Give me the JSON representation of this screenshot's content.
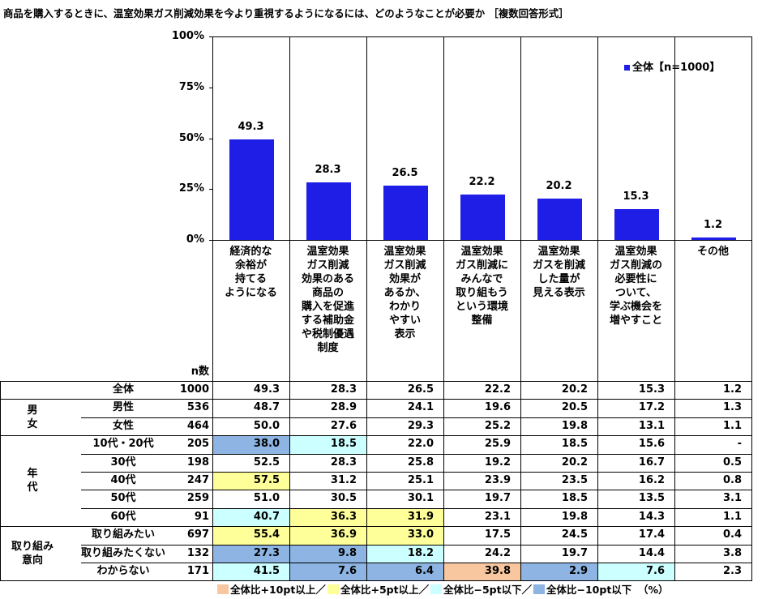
{
  "chart_data": {
    "type": "bar",
    "title": "商品を購入するときに、温室効果ガス削減効果を今より重視するようになるには、どのようなことが必要か ［複数回答形式］",
    "categories": [
      "経済的な\n余裕が\n持てる\nようになる",
      "温室効果\nガス削減\n効果のある\n商品の\n購入を促進\nする補助金\nや税制優遇\n制度",
      "温室効果\nガス削減\n効果が\nあるか、\nわかり\nやすい\n表示",
      "温室効果\nガス削減に\nみんなで\n取り組もう\nという環境\n整備",
      "温室効果\nガスを削減\nした量が\n見える表示",
      "温室効果\nガス削減の\n必要性に\nついて、\n学ぶ機会を\n増やすこと",
      "その他"
    ],
    "series": [
      {
        "name": "全体【n=1000】",
        "color": "#1e1ee6",
        "values": [
          49.3,
          28.3,
          26.5,
          22.2,
          20.2,
          15.3,
          1.2
        ]
      }
    ],
    "ylim": [
      0,
      100
    ],
    "yticks": [
      {
        "value": 0,
        "label": "0%"
      },
      {
        "value": 25,
        "label": "25%"
      },
      {
        "value": 50,
        "label": "50%"
      },
      {
        "value": 75,
        "label": "75%"
      },
      {
        "value": 100,
        "label": "100%"
      }
    ],
    "legend": "top-right"
  },
  "table": {
    "n_header": "n数",
    "groups": [
      {
        "label": "男\n女",
        "rows": [
          1,
          2
        ]
      },
      {
        "label": "年\n代",
        "rows": [
          3,
          7
        ]
      },
      {
        "label": "取り組み\n意向",
        "rows": [
          8,
          10
        ]
      }
    ],
    "rows": [
      {
        "label": "全体",
        "n": 1000,
        "cells": [
          "49.3",
          "28.3",
          "26.5",
          "22.2",
          "20.2",
          "15.3",
          "1.2"
        ],
        "colors": [
          null,
          null,
          null,
          null,
          null,
          null,
          null
        ]
      },
      {
        "label": "男性",
        "n": 536,
        "cells": [
          "48.7",
          "28.9",
          "24.1",
          "19.6",
          "20.5",
          "17.2",
          "1.3"
        ],
        "colors": [
          null,
          null,
          null,
          null,
          null,
          null,
          null
        ]
      },
      {
        "label": "女性",
        "n": 464,
        "cells": [
          "50.0",
          "27.6",
          "29.3",
          "25.2",
          "19.8",
          "13.1",
          "1.1"
        ],
        "colors": [
          null,
          null,
          null,
          null,
          null,
          null,
          null
        ]
      },
      {
        "label": "10代・20代",
        "n": 205,
        "cells": [
          "38.0",
          "18.5",
          "22.0",
          "25.9",
          "18.5",
          "15.6",
          "-"
        ],
        "colors": [
          "#8db4e2",
          "#ccffff",
          null,
          null,
          null,
          null,
          null
        ]
      },
      {
        "label": "30代",
        "n": 198,
        "cells": [
          "52.5",
          "28.3",
          "25.8",
          "19.2",
          "20.2",
          "16.7",
          "0.5"
        ],
        "colors": [
          null,
          null,
          null,
          null,
          null,
          null,
          null
        ]
      },
      {
        "label": "40代",
        "n": 247,
        "cells": [
          "57.5",
          "31.2",
          "25.1",
          "23.9",
          "23.5",
          "16.2",
          "0.8"
        ],
        "colors": [
          "#ffff99",
          null,
          null,
          null,
          null,
          null,
          null
        ]
      },
      {
        "label": "50代",
        "n": 259,
        "cells": [
          "51.0",
          "30.5",
          "30.1",
          "19.7",
          "18.5",
          "13.5",
          "3.1"
        ],
        "colors": [
          null,
          null,
          null,
          null,
          null,
          null,
          null
        ]
      },
      {
        "label": "60代",
        "n": 91,
        "cells": [
          "40.7",
          "36.3",
          "31.9",
          "23.1",
          "19.8",
          "14.3",
          "1.1"
        ],
        "colors": [
          "#ccffff",
          "#ffff99",
          "#ffff99",
          null,
          null,
          null,
          null
        ]
      },
      {
        "label": "取り組みたい",
        "n": 697,
        "cells": [
          "55.4",
          "36.9",
          "33.0",
          "17.5",
          "24.5",
          "17.4",
          "0.4"
        ],
        "colors": [
          "#ffff99",
          "#ffff99",
          "#ffff99",
          null,
          null,
          null,
          null
        ]
      },
      {
        "label": "取り組みたくない",
        "n": 132,
        "cells": [
          "27.3",
          "9.8",
          "18.2",
          "24.2",
          "19.7",
          "14.4",
          "3.8"
        ],
        "colors": [
          "#8db4e2",
          "#8db4e2",
          "#ccffff",
          null,
          null,
          null,
          null
        ]
      },
      {
        "label": "わからない",
        "n": 171,
        "cells": [
          "41.5",
          "7.6",
          "6.4",
          "39.8",
          "2.9",
          "7.6",
          "2.3"
        ],
        "colors": [
          "#ccffff",
          "#8db4e2",
          "#8db4e2",
          "#f8c79f",
          "#8db4e2",
          "#ccffff",
          null
        ]
      }
    ],
    "footer": {
      "items": [
        {
          "label": "全体比+10pt以上／",
          "color": "#f8c79f"
        },
        {
          "label": "全体比+5pt以上／",
          "color": "#ffff99"
        },
        {
          "label": "全体比−5pt以下／",
          "color": "#ccffff"
        },
        {
          "label": "全体比−10pt以下",
          "color": "#8db4e2"
        }
      ],
      "unit": "（%）"
    }
  }
}
